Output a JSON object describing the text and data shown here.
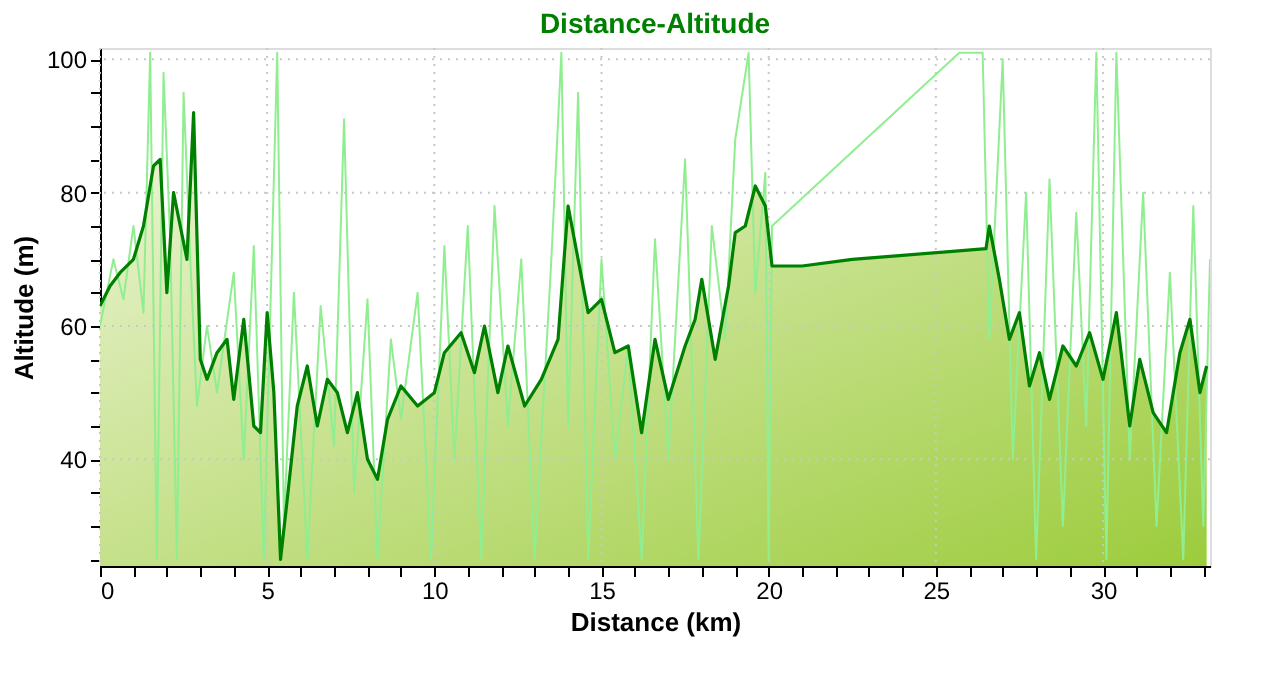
{
  "chart_data": {
    "type": "line",
    "title": "Distance-Altitude",
    "xlabel": "Distance (km)",
    "ylabel": "Altitude (m)",
    "xlim": [
      0,
      33.2
    ],
    "ylim": [
      24,
      101.7
    ],
    "xticks": [
      0,
      {
        "value": 1,
        "label": null
      },
      {
        "value": 2,
        "label": null
      },
      {
        "value": 3,
        "label": null
      },
      {
        "value": 4,
        "label": null
      },
      5,
      {
        "value": 6,
        "label": null
      },
      {
        "value": 7,
        "label": null
      },
      {
        "value": 8,
        "label": null
      },
      {
        "value": 9,
        "label": null
      },
      10,
      {
        "value": 11,
        "label": null
      },
      {
        "value": 12,
        "label": null
      },
      {
        "value": 13,
        "label": null
      },
      {
        "value": 14,
        "label": null
      },
      15,
      {
        "value": 16,
        "label": null
      },
      {
        "value": 17,
        "label": null
      },
      {
        "value": 18,
        "label": null
      },
      {
        "value": 19,
        "label": null
      },
      20,
      {
        "value": 21,
        "label": null
      },
      {
        "value": 22,
        "label": null
      },
      {
        "value": 23,
        "label": null
      },
      {
        "value": 24,
        "label": null
      },
      25,
      {
        "value": 26,
        "label": null
      },
      {
        "value": 27,
        "label": null
      },
      {
        "value": 28,
        "label": null
      },
      {
        "value": 29,
        "label": null
      },
      30,
      {
        "value": 31,
        "label": null
      },
      {
        "value": 32,
        "label": null
      },
      {
        "value": 33,
        "label": null
      }
    ],
    "yticks": [
      {
        "value": 25,
        "label": null
      },
      {
        "value": 30,
        "label": null
      },
      {
        "value": 35,
        "label": null
      },
      40,
      {
        "value": 45,
        "label": null
      },
      {
        "value": 50,
        "label": null
      },
      {
        "value": 55,
        "label": null
      },
      60,
      {
        "value": 65,
        "label": null
      },
      {
        "value": 70,
        "label": null
      },
      {
        "value": 75,
        "label": null
      },
      80,
      {
        "value": 85,
        "label": null
      },
      {
        "value": 90,
        "label": null
      },
      {
        "value": 95,
        "label": null
      },
      100
    ],
    "grid": true,
    "series": [
      {
        "type": "line",
        "color": "#90ee90",
        "x": [
          0,
          0.4,
          0.7,
          1.0,
          1.3,
          1.5,
          1.7,
          1.9,
          2.1,
          2.3,
          2.5,
          2.7,
          2.9,
          3.2,
          3.5,
          4.0,
          4.3,
          4.6,
          4.9,
          5.3,
          5.5,
          5.8,
          6.2,
          6.6,
          7.0,
          7.3,
          7.6,
          8.0,
          8.3,
          8.7,
          9.0,
          9.5,
          9.9,
          10.3,
          10.6,
          11.0,
          11.4,
          11.8,
          12.2,
          12.6,
          13.0,
          13.5,
          13.8,
          14.0,
          14.3,
          14.6,
          15.0,
          15.4,
          15.8,
          16.2,
          16.6,
          17.0,
          17.5,
          17.9,
          18.3,
          18.7,
          19.0,
          19.4,
          19.6,
          19.9,
          20.0,
          20.1,
          25.7,
          26.4,
          26.6,
          27.0,
          27.3,
          27.7,
          28.0,
          28.4,
          28.8,
          29.2,
          29.5,
          29.8,
          30.1,
          30.4,
          30.8,
          31.2,
          31.6,
          32.0,
          32.4,
          32.7,
          33.0,
          33.2
        ],
        "values": [
          60,
          70,
          64,
          75,
          62,
          101,
          25,
          98,
          73,
          25,
          95,
          70,
          48,
          60,
          50,
          68,
          40,
          72,
          25,
          101,
          30,
          65,
          25,
          63,
          42,
          91,
          35,
          64,
          25,
          58,
          46,
          65,
          25,
          72,
          40,
          75,
          25,
          78,
          45,
          70,
          25,
          70,
          101,
          45,
          95,
          25,
          70,
          40,
          57,
          25,
          73,
          40,
          85,
          25,
          75,
          58,
          88,
          101,
          65,
          83,
          25,
          75,
          101,
          101,
          58,
          100,
          40,
          80,
          25,
          82,
          30,
          77,
          45,
          101,
          25,
          101,
          40,
          80,
          30,
          68,
          25,
          78,
          30,
          70
        ]
      },
      {
        "type": "area",
        "color": "#008000",
        "x": [
          0,
          0.3,
          0.6,
          1.0,
          1.3,
          1.6,
          1.8,
          2.0,
          2.2,
          2.4,
          2.6,
          2.8,
          3.0,
          3.2,
          3.5,
          3.8,
          4.0,
          4.3,
          4.6,
          4.8,
          5.0,
          5.2,
          5.4,
          5.6,
          5.9,
          6.2,
          6.5,
          6.8,
          7.1,
          7.4,
          7.7,
          8.0,
          8.3,
          8.6,
          9.0,
          9.5,
          10.0,
          10.3,
          10.8,
          11.2,
          11.5,
          11.9,
          12.2,
          12.7,
          13.2,
          13.7,
          14.0,
          14.3,
          14.6,
          15.0,
          15.4,
          15.8,
          16.2,
          16.6,
          17.0,
          17.5,
          17.8,
          18.0,
          18.4,
          18.8,
          19.0,
          19.3,
          19.6,
          19.9,
          20.1,
          21.0,
          22.5,
          24.0,
          25.5,
          26.5,
          26.6,
          26.9,
          27.2,
          27.5,
          27.8,
          28.1,
          28.4,
          28.8,
          29.2,
          29.6,
          30.0,
          30.4,
          30.8,
          31.1,
          31.5,
          31.9,
          32.3,
          32.6,
          32.9,
          33.1
        ],
        "values": [
          63,
          66,
          68,
          70,
          75,
          84,
          85,
          65,
          80,
          75,
          70,
          92,
          55,
          52,
          56,
          58,
          49,
          61,
          45,
          44,
          62,
          50,
          25,
          34,
          48,
          54,
          45,
          52,
          50,
          44,
          50,
          40,
          37,
          46,
          51,
          48,
          50,
          56,
          59,
          53,
          60,
          50,
          57,
          48,
          52,
          58,
          78,
          70,
          62,
          64,
          56,
          57,
          44,
          58,
          49,
          57,
          61,
          67,
          55,
          66,
          74,
          75,
          81,
          78,
          69,
          69,
          70,
          70.6,
          71.2,
          71.6,
          75,
          67,
          58,
          62,
          51,
          56,
          49,
          57,
          54,
          59,
          52,
          62,
          45,
          55,
          47,
          44,
          56,
          61,
          50,
          54
        ]
      }
    ]
  }
}
